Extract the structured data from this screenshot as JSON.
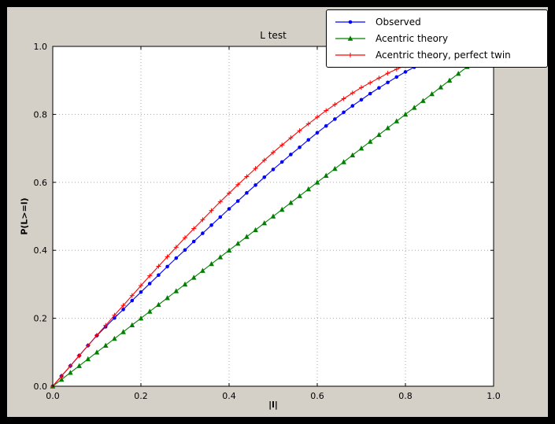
{
  "colors": {
    "window_bg": "#000000",
    "figure_bg": "#d4d0c8",
    "axes_bg": "#ffffff",
    "grid": "#a8a8a8",
    "frame": "#000000",
    "text": "#000000"
  },
  "chart_data": {
    "type": "line",
    "title": "L test",
    "xlabel": "|l|",
    "ylabel": "P(L>=l)",
    "xlim": [
      0.0,
      1.0
    ],
    "ylim": [
      0.0,
      1.0
    ],
    "xticks": [
      "0.0",
      "0.2",
      "0.4",
      "0.6",
      "0.8",
      "1.0"
    ],
    "yticks": [
      "0.0",
      "0.2",
      "0.4",
      "0.6",
      "0.8",
      "1.0"
    ],
    "grid": "dotted",
    "legend_position": "upper right",
    "series": [
      {
        "name": "Observed",
        "color": "#0000ff",
        "marker": "circle",
        "x": [
          0.0,
          0.02,
          0.04,
          0.06,
          0.08,
          0.1,
          0.12,
          0.14,
          0.16,
          0.18,
          0.2,
          0.22,
          0.24,
          0.26,
          0.28,
          0.3,
          0.32,
          0.34,
          0.36,
          0.38,
          0.4,
          0.42,
          0.44,
          0.46,
          0.48,
          0.5,
          0.52,
          0.54,
          0.56,
          0.58,
          0.6,
          0.62,
          0.64,
          0.66,
          0.68,
          0.7,
          0.72,
          0.74,
          0.76,
          0.78,
          0.8,
          0.82,
          0.84,
          0.86
        ],
        "y": [
          0.0,
          0.03,
          0.06,
          0.09,
          0.12,
          0.149,
          0.175,
          0.201,
          0.226,
          0.252,
          0.277,
          0.302,
          0.327,
          0.352,
          0.377,
          0.401,
          0.426,
          0.45,
          0.474,
          0.498,
          0.522,
          0.545,
          0.569,
          0.592,
          0.615,
          0.638,
          0.66,
          0.682,
          0.703,
          0.725,
          0.746,
          0.766,
          0.786,
          0.806,
          0.825,
          0.843,
          0.861,
          0.878,
          0.894,
          0.91,
          0.925,
          0.939,
          0.952,
          0.964
        ]
      },
      {
        "name": "Acentric theory",
        "color": "#008000",
        "marker": "triangle-up",
        "x": [
          0.0,
          0.02,
          0.04,
          0.06,
          0.08,
          0.1,
          0.12,
          0.14,
          0.16,
          0.18,
          0.2,
          0.22,
          0.24,
          0.26,
          0.28,
          0.3,
          0.32,
          0.34,
          0.36,
          0.38,
          0.4,
          0.42,
          0.44,
          0.46,
          0.48,
          0.5,
          0.52,
          0.54,
          0.56,
          0.58,
          0.6,
          0.62,
          0.64,
          0.66,
          0.68,
          0.7,
          0.72,
          0.74,
          0.76,
          0.78,
          0.8,
          0.82,
          0.84,
          0.86,
          0.88,
          0.9,
          0.92,
          0.94,
          0.96
        ],
        "y": [
          0.0,
          0.02,
          0.04,
          0.06,
          0.08,
          0.1,
          0.12,
          0.14,
          0.16,
          0.18,
          0.2,
          0.22,
          0.24,
          0.26,
          0.28,
          0.3,
          0.32,
          0.34,
          0.36,
          0.38,
          0.4,
          0.42,
          0.44,
          0.46,
          0.48,
          0.5,
          0.52,
          0.54,
          0.56,
          0.58,
          0.6,
          0.62,
          0.64,
          0.66,
          0.68,
          0.7,
          0.72,
          0.74,
          0.76,
          0.78,
          0.8,
          0.82,
          0.84,
          0.86,
          0.88,
          0.9,
          0.92,
          0.94,
          0.96
        ]
      },
      {
        "name": "Acentric theory, perfect twin",
        "color": "#ff0000",
        "marker": "plus",
        "x": [
          0.0,
          0.02,
          0.04,
          0.06,
          0.08,
          0.1,
          0.12,
          0.14,
          0.16,
          0.18,
          0.2,
          0.22,
          0.24,
          0.26,
          0.28,
          0.3,
          0.32,
          0.34,
          0.36,
          0.38,
          0.4,
          0.42,
          0.44,
          0.46,
          0.48,
          0.5,
          0.52,
          0.54,
          0.56,
          0.58,
          0.6,
          0.62,
          0.64,
          0.66,
          0.68,
          0.7,
          0.72,
          0.74,
          0.76,
          0.78,
          0.8,
          0.82,
          0.84,
          0.86
        ],
        "y": [
          0.0,
          0.03,
          0.06,
          0.09,
          0.12,
          0.15,
          0.179,
          0.209,
          0.238,
          0.267,
          0.296,
          0.325,
          0.353,
          0.381,
          0.409,
          0.437,
          0.464,
          0.49,
          0.517,
          0.543,
          0.568,
          0.593,
          0.617,
          0.641,
          0.665,
          0.688,
          0.71,
          0.731,
          0.752,
          0.772,
          0.792,
          0.811,
          0.829,
          0.846,
          0.863,
          0.879,
          0.893,
          0.907,
          0.921,
          0.933,
          0.944,
          0.954,
          0.964,
          0.972
        ]
      }
    ]
  }
}
